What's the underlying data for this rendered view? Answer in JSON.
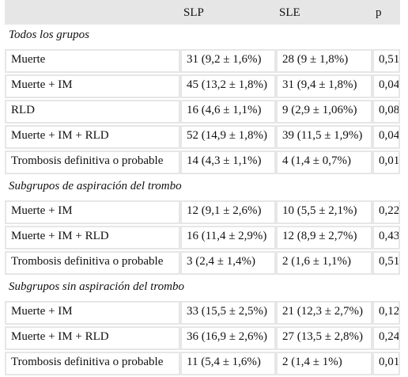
{
  "header": {
    "col1": "SLP",
    "col2": "SLE",
    "col3": "p"
  },
  "groups": [
    {
      "title": "Todos los grupos",
      "rows": [
        {
          "label": "Muerte",
          "slp": "31 (9,2 ± 1,6%)",
          "sle": "28 (9 ± 1,8%)",
          "p": "0,51"
        },
        {
          "label": "Muerte + IM",
          "slp": "45 (13,2 ± 1,8%)",
          "sle": "31 (9,4 ± 1,8%)",
          "p": "0,04"
        },
        {
          "label": "RLD",
          "slp": "16 (4,6 ± 1,1%)",
          "sle": "9 (2,9 ± 1,06%)",
          "p": "0,08"
        },
        {
          "label": "Muerte + IM + RLD",
          "slp": "52 (14,9 ± 1,8%)",
          "sle": "39 (11,5 ± 1,9%)",
          "p": "0,04"
        },
        {
          "label": "Trombosis definitiva o probable",
          "slp": "14 (4,3 ± 1,1%)",
          "sle": "4 (1,4 ± 0,7%)",
          "p": "0,01"
        }
      ]
    },
    {
      "title": "Subgrupos de aspiración del trombo",
      "rows": [
        {
          "label": "Muerte + IM",
          "slp": "12 (9,1 ± 2,6%)",
          "sle": "10 (5,5 ± 2,1%)",
          "p": "0,22"
        },
        {
          "label": "Muerte + IM + RLD",
          "slp": "16 (11,4 ± 2,9%)",
          "sle": "12 (8,9 ± 2,7%)",
          "p": "0,43"
        },
        {
          "label": "Trombosis definitiva o probable",
          "slp": "3 (2,4 ± 1,4%)",
          "sle": "2 (1,6 ± 1,1%)",
          "p": "0,51"
        }
      ]
    },
    {
      "title": "Subgrupos sin aspiración del trombo",
      "rows": [
        {
          "label": "Muerte + IM",
          "slp": "33 (15,5 ± 2,5%)",
          "sle": "21 (12,3 ± 2,7%)",
          "p": "0,12"
        },
        {
          "label": "Muerte + IM + RLD",
          "slp": "36 (16,9 ± 2,6%)",
          "sle": "27 (13,5 ± 2,8%)",
          "p": "0,24"
        },
        {
          "label": "Trombosis definitiva o probable",
          "slp": "11 (5,4 ± 1,6%)",
          "sle": "2 (1,4 ± 1%)",
          "p": "0,01"
        }
      ]
    }
  ]
}
